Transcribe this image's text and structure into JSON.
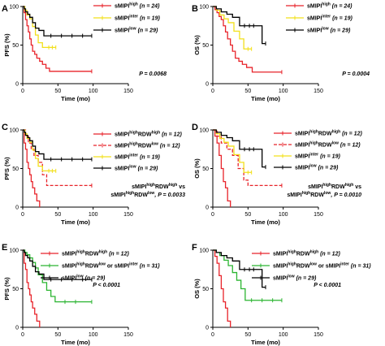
{
  "chart_data": [
    {
      "type": "line",
      "panel": "A",
      "ylabel": "PFS (%)",
      "xlabel": "Time (mo)",
      "xticks": [
        0,
        50,
        100,
        150
      ],
      "yticks": [
        0,
        50,
        100
      ],
      "xlim": [
        0,
        150
      ],
      "ylim": [
        0,
        100
      ],
      "annotation": [
        "P = 0.0068"
      ],
      "series": [
        {
          "label": "sMIPI",
          "sup": "high",
          "sub": "",
          "n": "(n = 24)",
          "color": "#e8232a",
          "dash": "",
          "x": [
            0,
            2,
            4,
            6,
            8,
            10,
            12,
            14,
            17,
            20,
            24,
            28,
            33,
            38,
            98
          ],
          "y": [
            100,
            92,
            83,
            75,
            67,
            58,
            50,
            42,
            38,
            33,
            29,
            25,
            20,
            16,
            16
          ],
          "censor": [
            98
          ]
        },
        {
          "label": "sMIPI",
          "sup": "inter",
          "sub": "",
          "n": "(n = 19)",
          "color": "#f2e01b",
          "dash": "",
          "x": [
            0,
            3,
            6,
            10,
            14,
            18,
            22,
            28,
            47
          ],
          "y": [
            100,
            95,
            89,
            84,
            74,
            63,
            53,
            47,
            47
          ],
          "censor": [
            37,
            42,
            47
          ]
        },
        {
          "label": "sMIPI",
          "sup": "low",
          "sub": "",
          "n": "(n = 29)",
          "color": "#000000",
          "dash": "",
          "x": [
            0,
            2,
            4,
            7,
            10,
            14,
            18,
            23,
            30,
            98
          ],
          "y": [
            100,
            97,
            93,
            90,
            86,
            79,
            72,
            69,
            62,
            62
          ],
          "censor": [
            40,
            55,
            70,
            85,
            98
          ]
        }
      ]
    },
    {
      "type": "line",
      "panel": "B",
      "ylabel": "OS (%)",
      "xlabel": "Time (mo)",
      "xticks": [
        0,
        50,
        100,
        150
      ],
      "yticks": [
        0,
        50,
        100
      ],
      "xlim": [
        0,
        150
      ],
      "ylim": [
        0,
        100
      ],
      "annotation": [
        "P = 0.0004"
      ],
      "series": [
        {
          "label": "sMIPI",
          "sup": "high",
          "sub": "",
          "n": "(n = 24)",
          "color": "#e8232a",
          "dash": "",
          "x": [
            0,
            3,
            6,
            9,
            12,
            15,
            18,
            21,
            25,
            28,
            32,
            37,
            42,
            48,
            56,
            98
          ],
          "y": [
            100,
            96,
            92,
            87,
            83,
            75,
            67,
            58,
            50,
            42,
            33,
            29,
            25,
            21,
            15,
            15
          ],
          "censor": [
            98
          ]
        },
        {
          "label": "sMIPI",
          "sup": "inter",
          "sub": "",
          "n": "(n = 19)",
          "color": "#f2e01b",
          "dash": "",
          "x": [
            0,
            5,
            10,
            16,
            22,
            30,
            38,
            44,
            55
          ],
          "y": [
            100,
            95,
            89,
            84,
            79,
            68,
            58,
            45,
            45
          ],
          "censor": [
            50,
            55
          ]
        },
        {
          "label": "sMIPI",
          "sup": "low",
          "sub": "",
          "n": "(n = 29)",
          "color": "#000000",
          "dash": "",
          "x": [
            0,
            5,
            12,
            20,
            28,
            38,
            62,
            70,
            75
          ],
          "y": [
            100,
            97,
            93,
            90,
            86,
            75,
            75,
            52,
            52
          ],
          "censor": [
            45,
            52,
            58,
            75
          ]
        }
      ]
    },
    {
      "type": "line",
      "panel": "C",
      "ylabel": "PFS (%)",
      "xlabel": "Time (mo)",
      "xticks": [
        0,
        50,
        100,
        150
      ],
      "yticks": [
        0,
        50,
        100
      ],
      "xlim": [
        0,
        150
      ],
      "ylim": [
        0,
        100
      ],
      "annotation": [
        "sMIPI^highRDW^high vs",
        "sMIPI^highRDW^low, P = 0.0033"
      ],
      "series": [
        {
          "label": "sMIPI",
          "sup": "high",
          "sub": "RDW",
          "sup2": "high",
          "n": "(n = 12)",
          "color": "#e8232a",
          "dash": "",
          "x": [
            0,
            2,
            4,
            6,
            8,
            10,
            12,
            14,
            17,
            20,
            24
          ],
          "y": [
            100,
            83,
            75,
            58,
            50,
            42,
            33,
            25,
            17,
            8,
            0
          ],
          "censor": []
        },
        {
          "label": "sMIPI",
          "sup": "high",
          "sub": "RDW",
          "sup2": "low",
          "n": "(n = 12)",
          "color": "#e8232a",
          "dash": "4,2",
          "x": [
            0,
            4,
            8,
            12,
            16,
            22,
            28,
            34,
            98
          ],
          "y": [
            100,
            92,
            83,
            75,
            67,
            58,
            42,
            28,
            28
          ],
          "censor": [
            98
          ]
        },
        {
          "label": "sMIPI",
          "sup": "inter",
          "sub": "",
          "n": "(n = 19)",
          "color": "#f2e01b",
          "dash": "",
          "x": [
            0,
            3,
            6,
            10,
            14,
            18,
            22,
            28,
            47
          ],
          "y": [
            100,
            95,
            89,
            84,
            74,
            63,
            53,
            47,
            47
          ],
          "censor": [
            37,
            42,
            47
          ]
        },
        {
          "label": "sMIPI",
          "sup": "low",
          "sub": "",
          "n": "(n = 29)",
          "color": "#000000",
          "dash": "",
          "x": [
            0,
            2,
            4,
            7,
            10,
            14,
            18,
            23,
            30,
            98
          ],
          "y": [
            100,
            97,
            93,
            90,
            86,
            79,
            72,
            69,
            62,
            62
          ],
          "censor": [
            40,
            55,
            70,
            85,
            98
          ]
        }
      ]
    },
    {
      "type": "line",
      "panel": "D",
      "ylabel": "OS (%)",
      "xlabel": "Time (mo)",
      "xticks": [
        0,
        50,
        100,
        150
      ],
      "yticks": [
        0,
        50,
        100
      ],
      "xlim": [
        0,
        150
      ],
      "ylim": [
        0,
        100
      ],
      "annotation": [
        "sMIPI^highRDW^high vs",
        "sMIPI^highRDW^low, P = 0.0010"
      ],
      "series": [
        {
          "label": "sMIPI",
          "sup": "high",
          "sub": "RDW",
          "sup2": "high",
          "n": "(n = 12)",
          "color": "#e8232a",
          "dash": "",
          "x": [
            0,
            3,
            6,
            9,
            12,
            15,
            18,
            21,
            25
          ],
          "y": [
            100,
            92,
            83,
            67,
            50,
            33,
            25,
            8,
            0
          ],
          "censor": []
        },
        {
          "label": "sMIPI",
          "sup": "high",
          "sub": "RDW",
          "sup2": "low",
          "n": "(n = 12)",
          "color": "#e8232a",
          "dash": "4,2",
          "x": [
            0,
            6,
            12,
            20,
            28,
            36,
            44,
            50,
            98
          ],
          "y": [
            100,
            92,
            83,
            75,
            67,
            50,
            35,
            28,
            28
          ],
          "censor": [
            98
          ]
        },
        {
          "label": "sMIPI",
          "sup": "inter",
          "sub": "",
          "n": "(n = 19)",
          "color": "#f2e01b",
          "dash": "",
          "x": [
            0,
            5,
            10,
            16,
            22,
            30,
            38,
            44,
            55
          ],
          "y": [
            100,
            95,
            89,
            84,
            79,
            68,
            58,
            45,
            45
          ],
          "censor": [
            50,
            55
          ]
        },
        {
          "label": "sMIPI",
          "sup": "low",
          "sub": "",
          "n": "(n = 29)",
          "color": "#000000",
          "dash": "",
          "x": [
            0,
            5,
            12,
            20,
            28,
            38,
            62,
            70,
            75
          ],
          "y": [
            100,
            97,
            93,
            90,
            86,
            75,
            75,
            52,
            52
          ],
          "censor": [
            45,
            52,
            58,
            75
          ]
        }
      ]
    },
    {
      "type": "line",
      "panel": "E",
      "ylabel": "PFS (%)",
      "xlabel": "Time (mo)",
      "xticks": [
        0,
        50,
        100,
        150
      ],
      "yticks": [
        0,
        50,
        100
      ],
      "xlim": [
        0,
        150
      ],
      "ylim": [
        0,
        100
      ],
      "annotation": [
        "P < 0.0001"
      ],
      "series": [
        {
          "label": "sMIPI",
          "sup": "high",
          "sub": "RDW",
          "sup2": "high",
          "n": "(n = 12)",
          "color": "#e8232a",
          "dash": "",
          "x": [
            0,
            2,
            4,
            6,
            8,
            10,
            12,
            14,
            17,
            20,
            24
          ],
          "y": [
            100,
            83,
            75,
            58,
            50,
            42,
            33,
            25,
            17,
            8,
            0
          ],
          "censor": []
        },
        {
          "label": "sMIPI",
          "sup": "high",
          "sub": "RDW",
          "sup2": "low",
          "tail": " or sMIPI",
          "tailsup": "inter",
          "n": "(n = 31)",
          "color": "#2bb531",
          "dash": "",
          "x": [
            0,
            3,
            6,
            10,
            14,
            18,
            22,
            28,
            34,
            40,
            46,
            98
          ],
          "y": [
            100,
            97,
            94,
            90,
            84,
            77,
            68,
            58,
            48,
            40,
            33,
            33
          ],
          "censor": [
            60,
            75,
            98
          ]
        },
        {
          "label": "sMIPI",
          "sup": "low",
          "sub": "",
          "n": "(n = 29)",
          "color": "#000000",
          "dash": "",
          "x": [
            0,
            2,
            4,
            7,
            10,
            14,
            18,
            23,
            30,
            98
          ],
          "y": [
            100,
            97,
            93,
            90,
            86,
            79,
            72,
            69,
            62,
            62
          ],
          "censor": [
            40,
            55,
            70,
            85,
            98
          ]
        }
      ]
    },
    {
      "type": "line",
      "panel": "F",
      "ylabel": "OS (%)",
      "xlabel": "Time (mo)",
      "xticks": [
        0,
        50,
        100,
        150
      ],
      "yticks": [
        0,
        50,
        100
      ],
      "xlim": [
        0,
        150
      ],
      "ylim": [
        0,
        100
      ],
      "annotation": [
        "P < 0.0001"
      ],
      "series": [
        {
          "label": "sMIPI",
          "sup": "high",
          "sub": "RDW",
          "sup2": "high",
          "n": "(n = 12)",
          "color": "#e8232a",
          "dash": "",
          "x": [
            0,
            3,
            6,
            9,
            12,
            15,
            18,
            21,
            25
          ],
          "y": [
            100,
            92,
            83,
            67,
            50,
            33,
            25,
            8,
            0
          ],
          "censor": []
        },
        {
          "label": "sMIPI",
          "sup": "high",
          "sub": "RDW",
          "sup2": "low",
          "tail": " or sMIPI",
          "tailsup": "inter",
          "n": "(n = 31)",
          "color": "#2bb531",
          "dash": "",
          "x": [
            0,
            5,
            10,
            16,
            22,
            28,
            34,
            40,
            46,
            98
          ],
          "y": [
            100,
            97,
            93,
            87,
            80,
            71,
            61,
            50,
            35,
            35
          ],
          "censor": [
            55,
            70,
            85,
            98
          ]
        },
        {
          "label": "sMIPI",
          "sup": "low",
          "sub": "",
          "n": "(n = 29)",
          "color": "#000000",
          "dash": "",
          "x": [
            0,
            5,
            12,
            20,
            28,
            38,
            62,
            70,
            75
          ],
          "y": [
            100,
            97,
            93,
            90,
            86,
            75,
            75,
            52,
            52
          ],
          "censor": [
            45,
            52,
            58,
            75
          ]
        }
      ]
    }
  ]
}
